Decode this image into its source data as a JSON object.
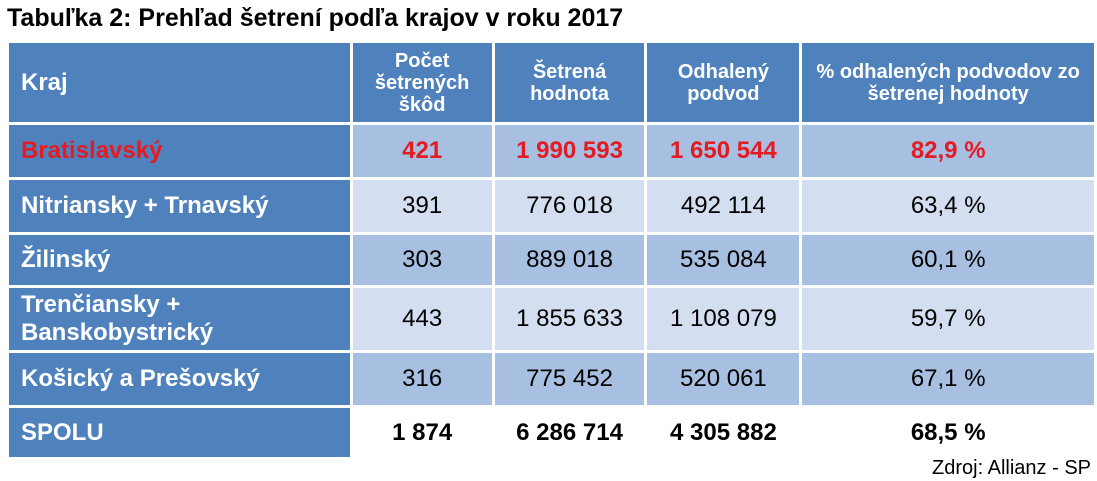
{
  "title": "Tabuľka 2: Prehľad šetrení podľa krajov v roku 2017",
  "table": {
    "header": [
      "Kraj",
      "Počet šetrených škôd",
      "Šetrená hodnota",
      "Odhalený podvod",
      "% odhalených podvodov zo šetrenej hodnoty"
    ],
    "rows": [
      [
        "Bratislavský",
        "421",
        "1 990 593",
        "1 650 544",
        "82,9 %"
      ],
      [
        "Nitriansky + Trnavský",
        "391",
        "776 018",
        "492 114",
        "63,4 %"
      ],
      [
        "Žilinský",
        "303",
        "889 018",
        "535 084",
        "60,1 %"
      ],
      [
        "Trenčiansky + Banskobystrický",
        "443",
        "1 855 633",
        "1 108 079",
        "59,7 %"
      ],
      [
        "Košický a Prešovský",
        "316",
        "775 452",
        "520 061",
        "67,1 %"
      ],
      [
        "SPOLU",
        "1 874",
        "6 286 714",
        "4 305 882",
        "68,5 %"
      ]
    ]
  },
  "source": "Zdroj: Allianz - SP"
}
